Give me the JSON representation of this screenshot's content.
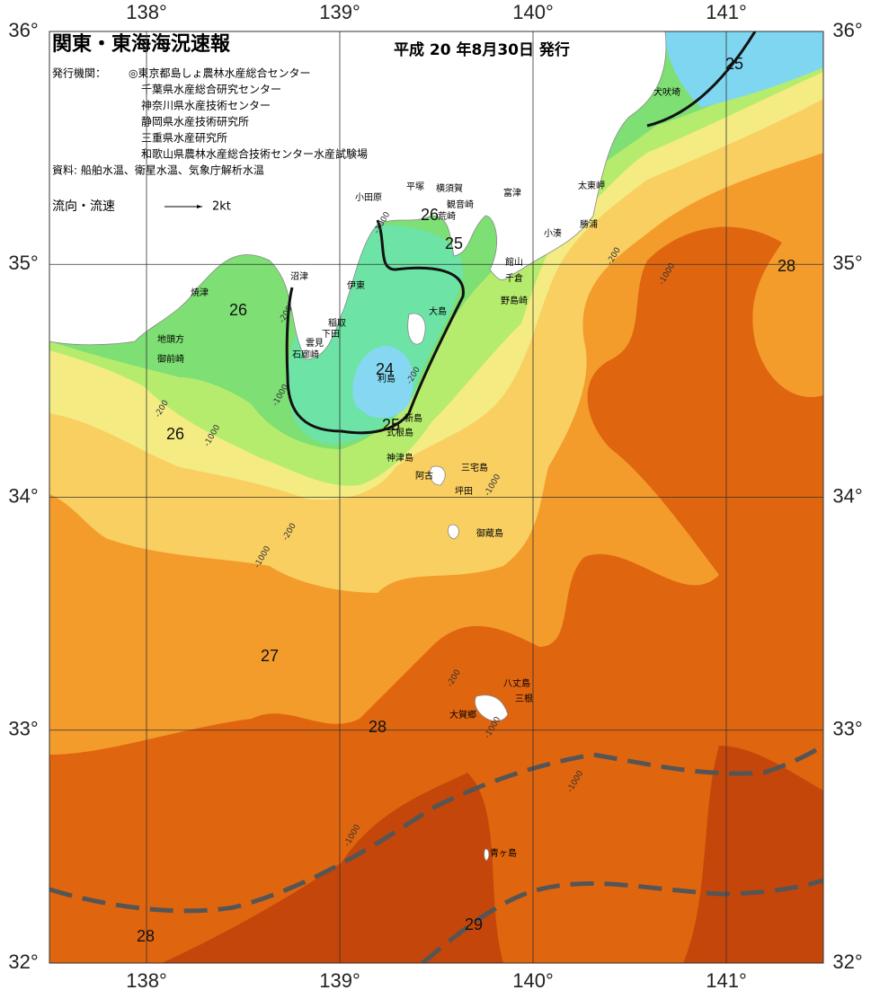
{
  "header": {
    "title": "関東・東海海況速報",
    "date": "平成 20 年8月30日 発行",
    "issuer_label": "発行機関：",
    "issuers": [
      "◎東京都島しょ農林水産総合センター",
      "千葉県水産総合研究センター",
      "神奈川県水産技術センター",
      "静岡県水産技術研究所",
      "三重県水産研究所",
      "和歌山県農林水産総合技術センター水産試験場"
    ],
    "source": "資料: 船舶水温、衛星水温、気象庁解析水温",
    "current_label": "流向・流速",
    "current_scale": "2kt"
  },
  "axes": {
    "lon_ticks": [
      {
        "value": 138,
        "label": "138°"
      },
      {
        "value": 139,
        "label": "139°"
      },
      {
        "value": 140,
        "label": "140°"
      },
      {
        "value": 141,
        "label": "141°"
      }
    ],
    "lat_ticks": [
      {
        "value": 36,
        "label": "36°"
      },
      {
        "value": 35,
        "label": "35°"
      },
      {
        "value": 34,
        "label": "34°"
      },
      {
        "value": 33,
        "label": "33°"
      },
      {
        "value": 32,
        "label": "32°"
      }
    ]
  },
  "places": [
    "小田原",
    "平塚",
    "横須賀",
    "観音崎",
    "荒崎",
    "富津",
    "太東岬",
    "勝浦",
    "小湊",
    "館山",
    "千倉",
    "野島崎",
    "犬吠埼",
    "焼津",
    "沼津",
    "伊東",
    "稲取",
    "下田",
    "雲見",
    "石廊崎",
    "地頭方",
    "御前崎",
    "大島",
    "利島",
    "新島",
    "式根島",
    "神津島",
    "三宅島",
    "阿古",
    "坪田",
    "御蔵島",
    "八丈島",
    "三根",
    "大賀郷",
    "青ヶ島"
  ],
  "contour_labels": [
    "25",
    "26",
    "25",
    "28",
    "26",
    "24",
    "25",
    "26",
    "27",
    "28",
    "28",
    "29"
  ],
  "depth_labels": [
    "-1000",
    "-200",
    "-1000",
    "-200",
    "-200",
    "-1000",
    "-200",
    "-1000",
    "-200",
    "-1000",
    "-1000",
    "-200",
    "-1000",
    "-1000",
    "-1000"
  ]
}
